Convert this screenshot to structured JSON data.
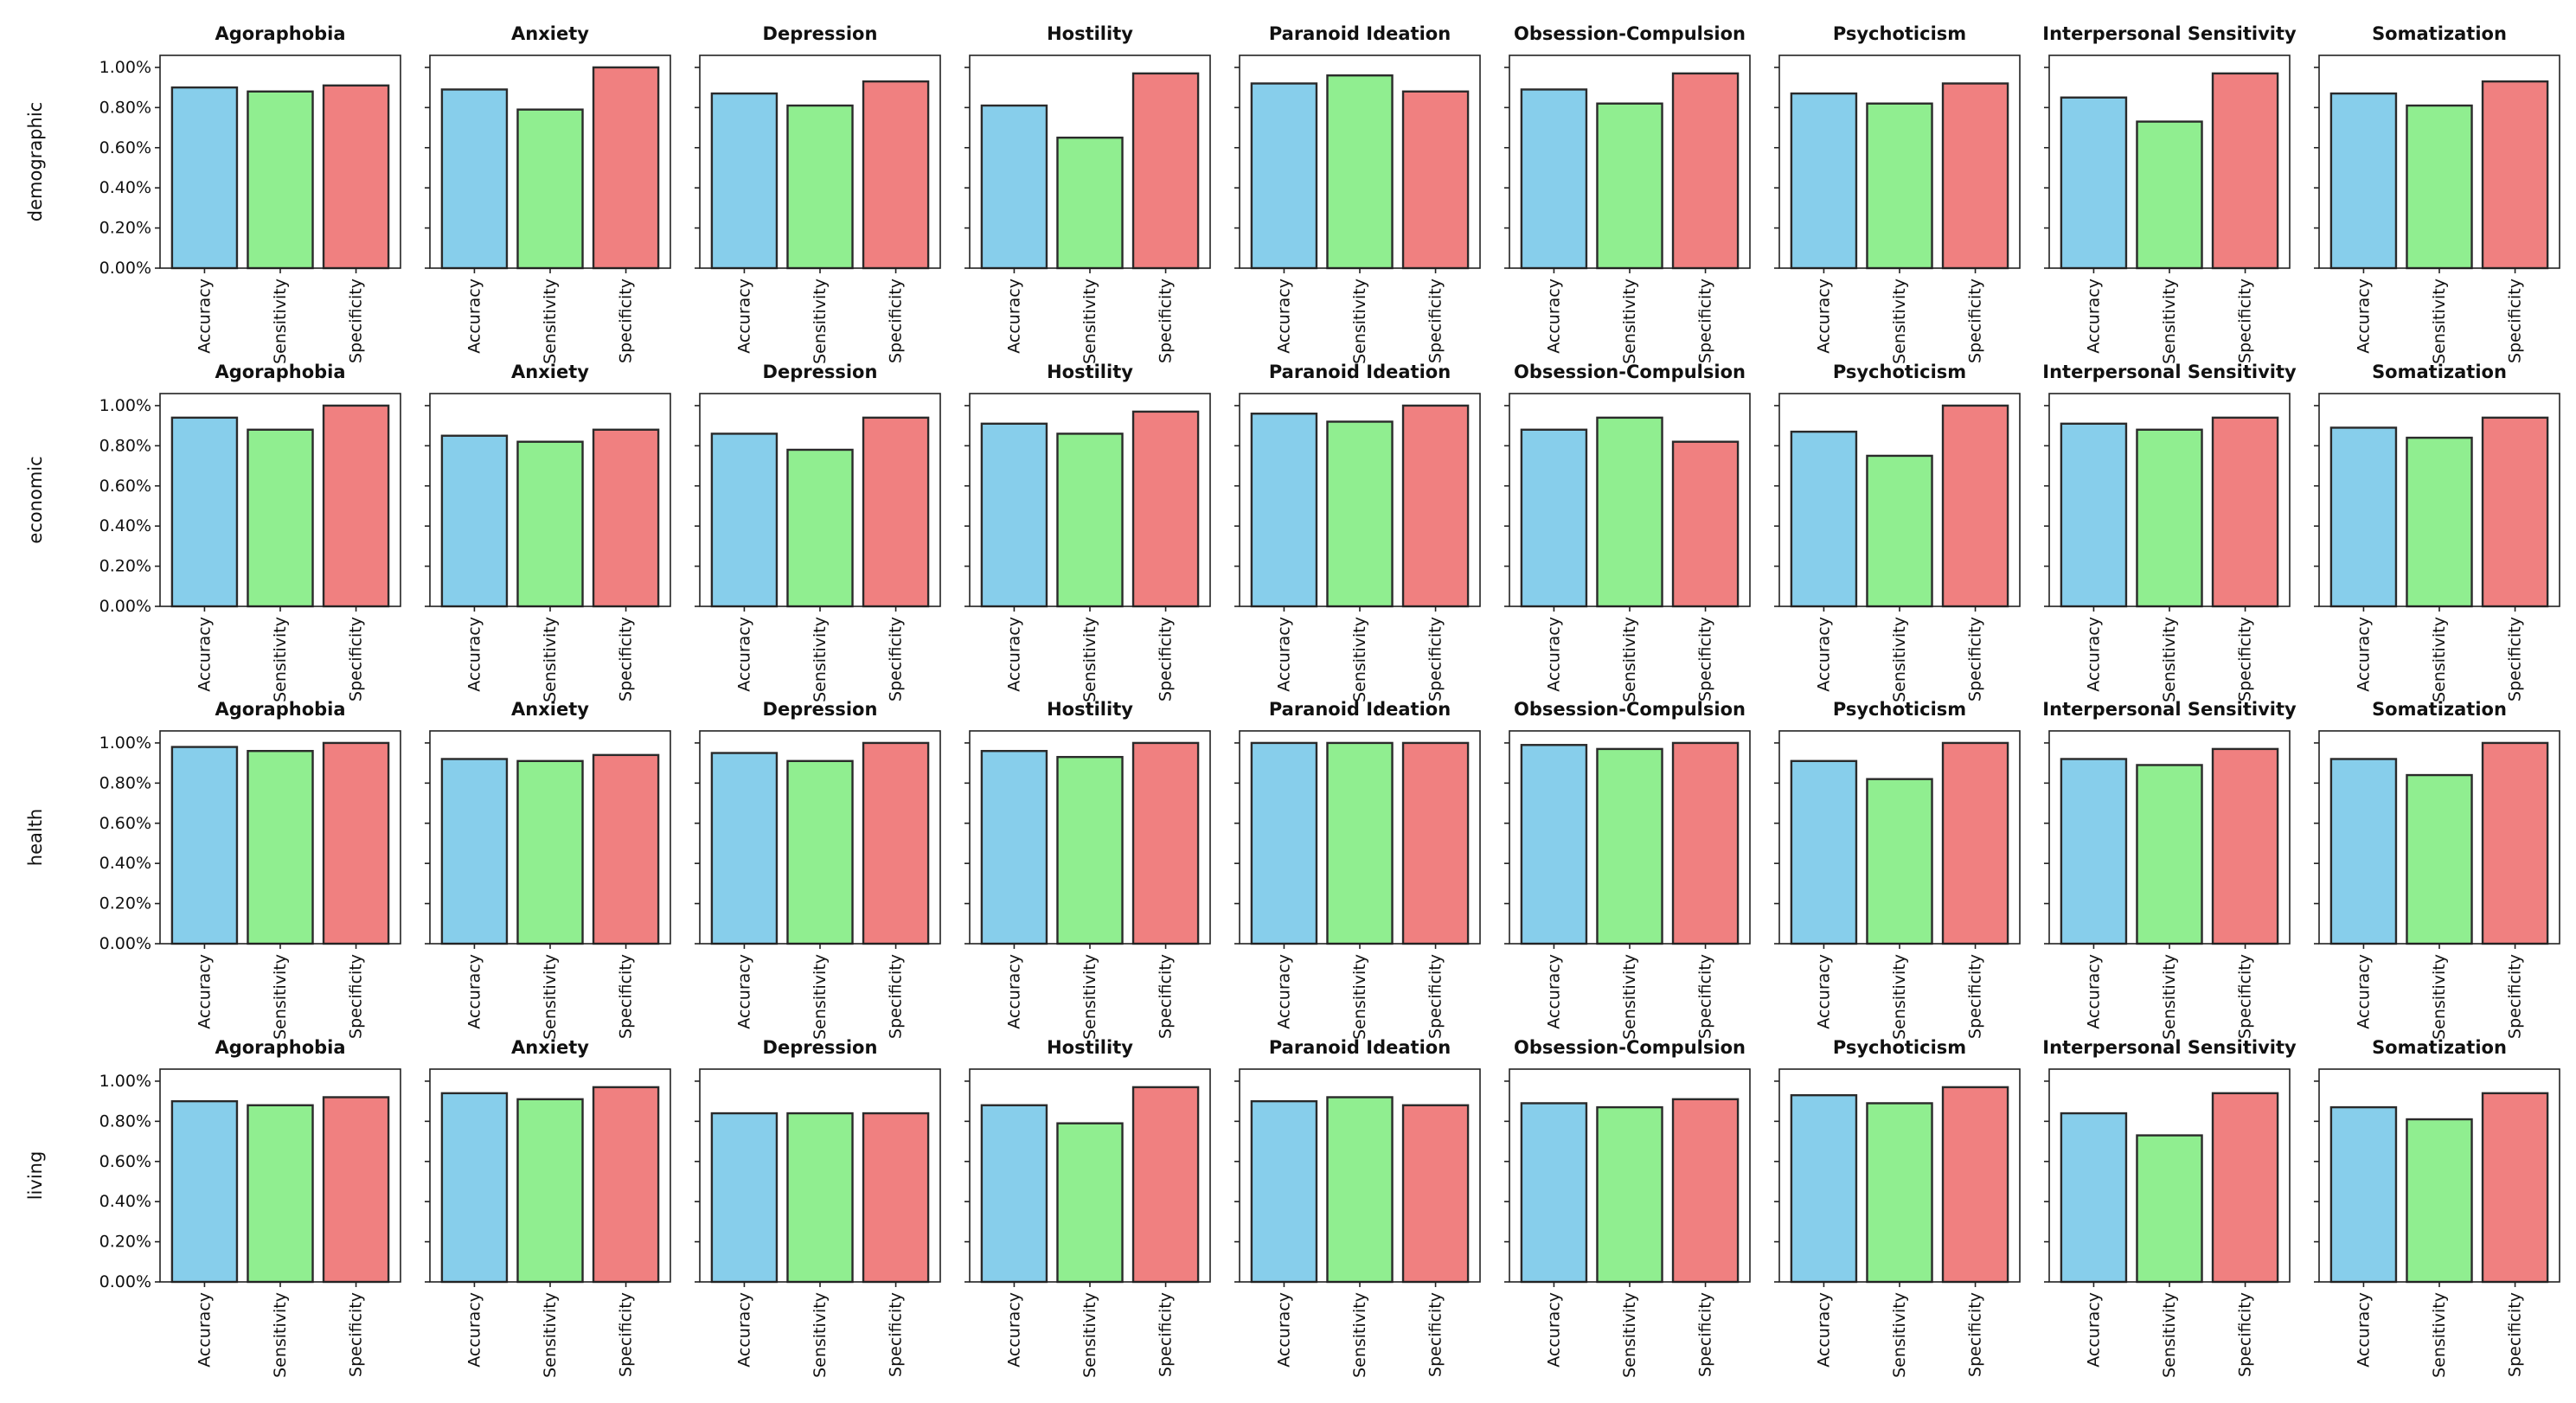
{
  "chart_data": {
    "type": "bar",
    "categories": [
      "Accuracy",
      "Sensitivity",
      "Specificity"
    ],
    "ytick_labels": [
      "0.00%",
      "0.20%",
      "0.40%",
      "0.60%",
      "0.80%",
      "1.00%"
    ],
    "ylim": [
      0,
      1.06
    ],
    "grid": false,
    "colors": [
      "#87ceeb",
      "#90ee90",
      "#f08080"
    ],
    "row_labels": [
      "demographic",
      "economic",
      "health",
      "living"
    ],
    "panel_titles": [
      "Agoraphobia",
      "Anxiety",
      "Depression",
      "Hostility",
      "Paranoid Ideation",
      "Obsession-Compulsion",
      "Psychoticism",
      "Interpersonal Sensitivity",
      "Somatization"
    ],
    "values": [
      [
        [
          0.9,
          0.88,
          0.91
        ],
        [
          0.89,
          0.79,
          1.0
        ],
        [
          0.87,
          0.81,
          0.93
        ],
        [
          0.81,
          0.65,
          0.97
        ],
        [
          0.92,
          0.96,
          0.88
        ],
        [
          0.89,
          0.82,
          0.97
        ],
        [
          0.87,
          0.82,
          0.92
        ],
        [
          0.85,
          0.73,
          0.97
        ],
        [
          0.87,
          0.81,
          0.93
        ]
      ],
      [
        [
          0.94,
          0.88,
          1.0
        ],
        [
          0.85,
          0.82,
          0.88
        ],
        [
          0.86,
          0.78,
          0.94
        ],
        [
          0.91,
          0.86,
          0.97
        ],
        [
          0.96,
          0.92,
          1.0
        ],
        [
          0.88,
          0.94,
          0.82
        ],
        [
          0.87,
          0.75,
          1.0
        ],
        [
          0.91,
          0.88,
          0.94
        ],
        [
          0.89,
          0.84,
          0.94
        ]
      ],
      [
        [
          0.98,
          0.96,
          1.0
        ],
        [
          0.92,
          0.91,
          0.94
        ],
        [
          0.95,
          0.91,
          1.0
        ],
        [
          0.96,
          0.93,
          1.0
        ],
        [
          1.0,
          1.0,
          1.0
        ],
        [
          0.99,
          0.97,
          1.0
        ],
        [
          0.91,
          0.82,
          1.0
        ],
        [
          0.92,
          0.89,
          0.97
        ],
        [
          0.92,
          0.84,
          1.0
        ]
      ],
      [
        [
          0.9,
          0.88,
          0.92
        ],
        [
          0.94,
          0.91,
          0.97
        ],
        [
          0.84,
          0.84,
          0.84
        ],
        [
          0.88,
          0.79,
          0.97
        ],
        [
          0.9,
          0.92,
          0.88
        ],
        [
          0.89,
          0.87,
          0.91
        ],
        [
          0.93,
          0.89,
          0.97
        ],
        [
          0.84,
          0.73,
          0.94
        ],
        [
          0.87,
          0.81,
          0.94
        ]
      ]
    ]
  }
}
